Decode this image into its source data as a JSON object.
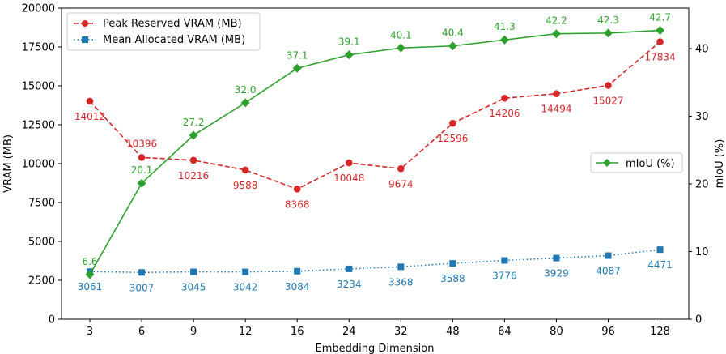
{
  "chart_data": {
    "type": "line",
    "xlabel": "Embedding Dimension",
    "ylabel_left": "VRAM (MB)",
    "ylabel_right": "mIoU (%)",
    "categories": [
      "3",
      "6",
      "9",
      "12",
      "16",
      "24",
      "32",
      "48",
      "64",
      "80",
      "96",
      "128"
    ],
    "ylim_left": [
      0,
      20000
    ],
    "yticks_left": [
      0,
      2500,
      5000,
      7500,
      10000,
      12500,
      15000,
      17500,
      20000
    ],
    "ylim_right": [
      0,
      46
    ],
    "yticks_right": [
      0,
      10,
      20,
      30,
      40
    ],
    "series": [
      {
        "key": "peak",
        "name": "Peak Reserved VRAM (MB)",
        "axis": "left",
        "color": "#d62728",
        "line_style": "dashed",
        "marker": "circle",
        "values": [
          14012,
          10396,
          10216,
          9588,
          8368,
          10048,
          9674,
          12596,
          14206,
          14494,
          15027,
          17834
        ],
        "labels": [
          "14012",
          "10396",
          "10216",
          "9588",
          "8368",
          "10048",
          "9674",
          "12596",
          "14206",
          "14494",
          "15027",
          "17834"
        ]
      },
      {
        "key": "mean",
        "name": "Mean Allocated VRAM (MB)",
        "axis": "left",
        "color": "#1f77b4",
        "line_style": "dotted",
        "marker": "square",
        "values": [
          3061,
          3007,
          3045,
          3042,
          3084,
          3234,
          3368,
          3588,
          3776,
          3929,
          4087,
          4471
        ],
        "labels": [
          "3061",
          "3007",
          "3045",
          "3042",
          "3084",
          "3234",
          "3368",
          "3588",
          "3776",
          "3929",
          "4087",
          "4471"
        ]
      },
      {
        "key": "miou",
        "name": "mIoU (%)",
        "axis": "right",
        "color": "#2ca02c",
        "line_style": "solid",
        "marker": "diamond",
        "values": [
          6.6,
          20.1,
          27.2,
          32.0,
          37.1,
          39.1,
          40.1,
          40.4,
          41.3,
          42.2,
          42.3,
          42.7
        ],
        "labels": [
          "6.6",
          "20.1",
          "27.2",
          "32.0",
          "37.1",
          "39.1",
          "40.1",
          "40.4",
          "41.3",
          "42.2",
          "42.3",
          "42.7"
        ]
      }
    ],
    "legend_left": {
      "placement": "upper-left",
      "entries": [
        "Peak Reserved VRAM (MB)",
        "Mean Allocated VRAM (MB)"
      ]
    },
    "legend_right": {
      "placement": "center-right",
      "entries": [
        "mIoU (%)"
      ]
    }
  }
}
